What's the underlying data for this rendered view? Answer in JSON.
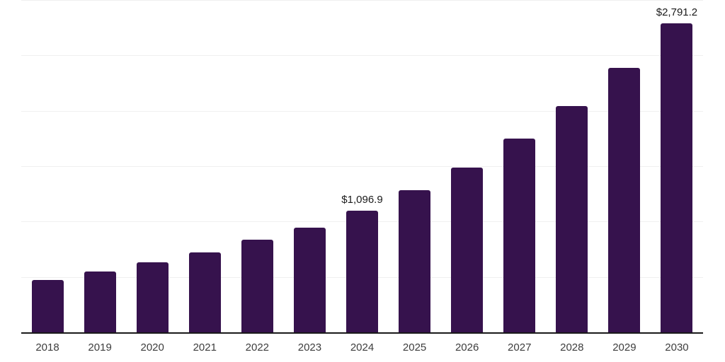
{
  "chart_data": {
    "type": "bar",
    "title": "",
    "xlabel": "",
    "ylabel": "",
    "categories": [
      "2018",
      "2019",
      "2020",
      "2021",
      "2022",
      "2023",
      "2024",
      "2025",
      "2026",
      "2027",
      "2028",
      "2029",
      "2030"
    ],
    "values": [
      474,
      548,
      632,
      724,
      835,
      943,
      1096.9,
      1282,
      1490,
      1747,
      2040,
      2387,
      2791.2
    ],
    "data_labels": [
      "",
      "",
      "",
      "",
      "",
      "",
      "$1,096.9",
      "",
      "",
      "",
      "",
      "",
      "$2,791.2"
    ],
    "ylim": [
      0,
      3000
    ],
    "gridline_values": [
      500,
      1000,
      1500,
      2000,
      2500,
      3000
    ],
    "grid": "horizontal",
    "legend_position": "none",
    "colors": {
      "bar": "#36124d",
      "axis_line": "#1a1a1a",
      "gridline": "#f0f0f0",
      "data_label_text": "#1a1a1a",
      "tick_text": "#3d3d3d",
      "background": "#ffffff"
    }
  }
}
